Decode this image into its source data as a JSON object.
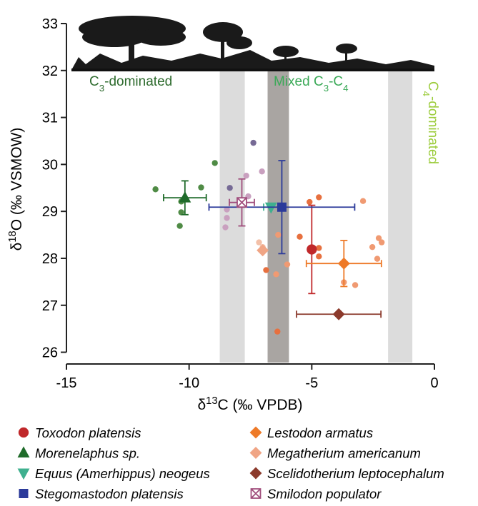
{
  "chart_data": {
    "type": "scatter",
    "xlabel": [
      "δ",
      "13",
      "C (‰ VPDB)"
    ],
    "ylabel": [
      "δ",
      "18",
      "O (‰ VSMOW)"
    ],
    "xlim": [
      -15,
      0
    ],
    "ylim": [
      25.75,
      33
    ],
    "xticks": [
      -15,
      -10,
      -5,
      0
    ],
    "yticks": [
      26,
      27,
      28,
      29,
      30,
      31,
      32,
      33
    ],
    "bands": [
      {
        "range": [
          -8.75,
          -7.73
        ],
        "color": "#dcdcdc"
      },
      {
        "range": [
          -6.8,
          -5.93
        ],
        "color": "#a9a5a2"
      },
      {
        "range": [
          -1.89,
          -0.9
        ],
        "color": "#dcdcdc"
      }
    ],
    "regions": [
      {
        "parts": [
          "C",
          "3",
          "-dominated"
        ],
        "color": "#2e6b2e"
      },
      {
        "parts": [
          "Mixed C",
          "3",
          "-C",
          "4"
        ],
        "color": "#3aa957"
      },
      {
        "parts": [
          "C",
          "4",
          "-dominated"
        ],
        "color": "#9ccc3c"
      }
    ],
    "series": [
      {
        "name": "Toxodon platensis",
        "color": "#c0282a",
        "marker": "circle",
        "x": -5.0,
        "y": 28.19,
        "xerr": 0,
        "yerr": 0.94,
        "points": {
          "color": "#e7703f",
          "x": [
            -5.09,
            -4.71,
            -5.49,
            -4.71,
            -4.71,
            -6.4,
            -6.86
          ],
          "y": [
            29.2,
            29.3,
            28.46,
            28.22,
            28.04,
            26.44,
            27.75
          ]
        }
      },
      {
        "name": "Morenelaphus sp.",
        "color": "#1f6b2a",
        "marker": "triangle",
        "x": -10.17,
        "y": 29.29,
        "xerr": 0.87,
        "yerr": 0.36,
        "points": {
          "color": "#4f8b45",
          "x": [
            -11.37,
            -9.51,
            -8.95,
            -10.32,
            -10.32,
            -10.38
          ],
          "y": [
            29.47,
            29.51,
            30.03,
            29.21,
            28.98,
            28.69
          ]
        }
      },
      {
        "name": "Equus (Amerhippus) neogeus",
        "color": "#3fb08f",
        "marker": "triangle-down",
        "x": -6.66,
        "y": 29.09,
        "xerr": 0.3,
        "yerr": 0
      },
      {
        "name": "Stegomastodon platensis",
        "color": "#2b3a9a",
        "marker": "square",
        "x": -6.22,
        "y": 29.09,
        "xerr": 2.97,
        "yerr": 0.99,
        "points": {
          "color": "#766a95",
          "x": [
            -7.38,
            -8.34
          ],
          "y": [
            30.46,
            29.5
          ]
        }
      },
      {
        "name": "Lestodon armatus",
        "color": "#ee7a28",
        "marker": "diamond",
        "x": -3.69,
        "y": 27.89,
        "xerr": 1.53,
        "yerr": 0.49,
        "points": {
          "color": "#f09a72",
          "x": [
            -2.91,
            -2.27,
            -2.15,
            -2.53,
            -2.33,
            -3.69,
            -3.23,
            -6.45,
            -6.0,
            -6.37
          ],
          "y": [
            29.22,
            28.43,
            28.34,
            28.24,
            27.99,
            27.49,
            27.43,
            27.66,
            27.87,
            28.5
          ]
        }
      },
      {
        "name": "Megatherium americanum",
        "color": "#f0a585",
        "marker": "diamond",
        "x": -7.0,
        "y": 28.17,
        "xerr": 0,
        "yerr": 0,
        "points": {
          "color": "#f3c0a8",
          "x": [
            -7.15,
            -7.0
          ],
          "y": [
            28.34,
            28.24
          ]
        }
      },
      {
        "name": "Scelidotherium leptocephalum",
        "color": "#8c3a2c",
        "marker": "diamond",
        "x": -3.9,
        "y": 26.81,
        "xerr": 1.72,
        "yerr": 0
      },
      {
        "name": "Smilodon populator",
        "color": "#a04d7c",
        "marker": "xsquare",
        "x": -7.85,
        "y": 29.19,
        "xerr": 0.51,
        "yerr": 0.5,
        "points": {
          "color": "#c9a0bf",
          "x": [
            -7.03,
            -7.67,
            -7.59,
            -8.46,
            -8.46,
            -8.52
          ],
          "y": [
            29.85,
            29.76,
            29.32,
            29.04,
            28.86,
            28.66
          ]
        }
      }
    ]
  }
}
